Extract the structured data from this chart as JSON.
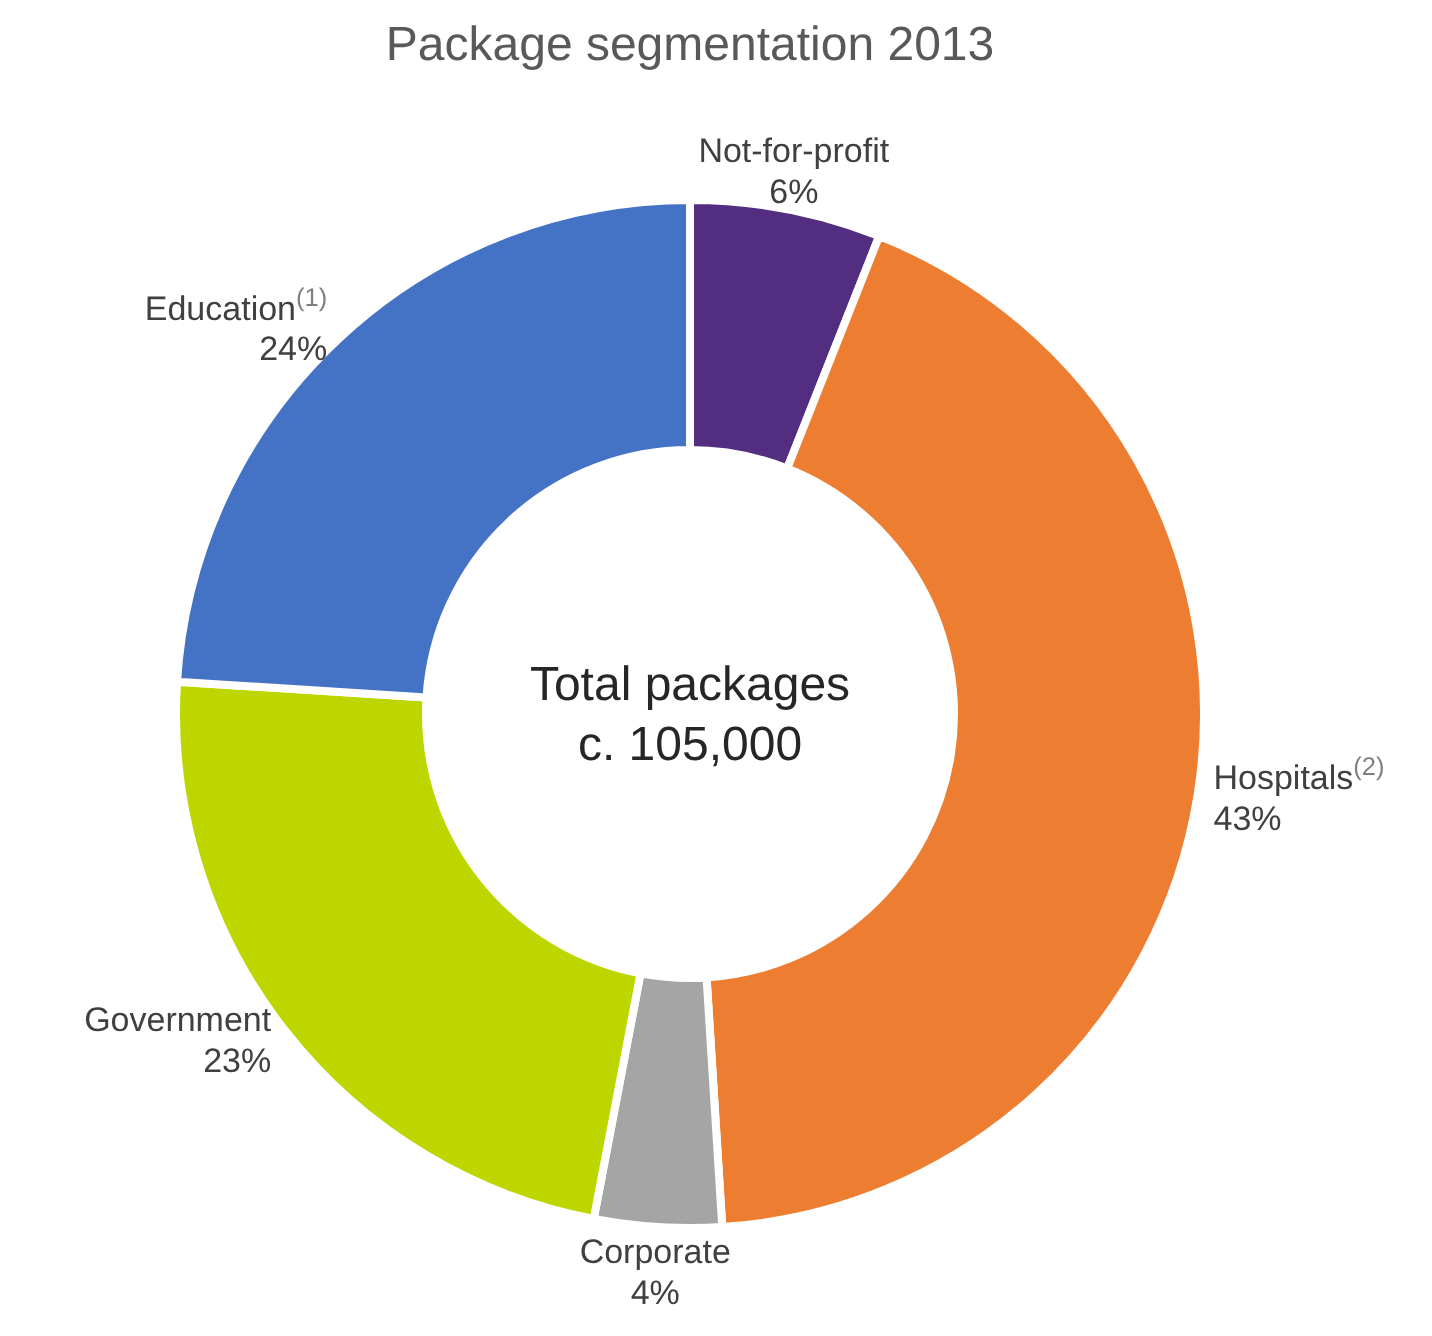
{
  "chart_data": {
    "type": "donut",
    "title": "Package segmentation 2013",
    "categories": [
      "Not-for-profit",
      "Hospitals$^{(2)}$",
      "Corporate",
      "Government",
      "Education$^{(1)}$"
    ],
    "values": [
      6,
      43,
      4,
      23,
      24
    ],
    "colors": [
      "#532d80",
      "#ed7d31",
      "#a5a5a5",
      "#bed600",
      "#4472c4"
    ],
    "value_labels": [
      "6%",
      "43%",
      "4%",
      "23%",
      "24%"
    ],
    "annotations": [
      "Total packages",
      "c. 105,000"
    ]
  }
}
